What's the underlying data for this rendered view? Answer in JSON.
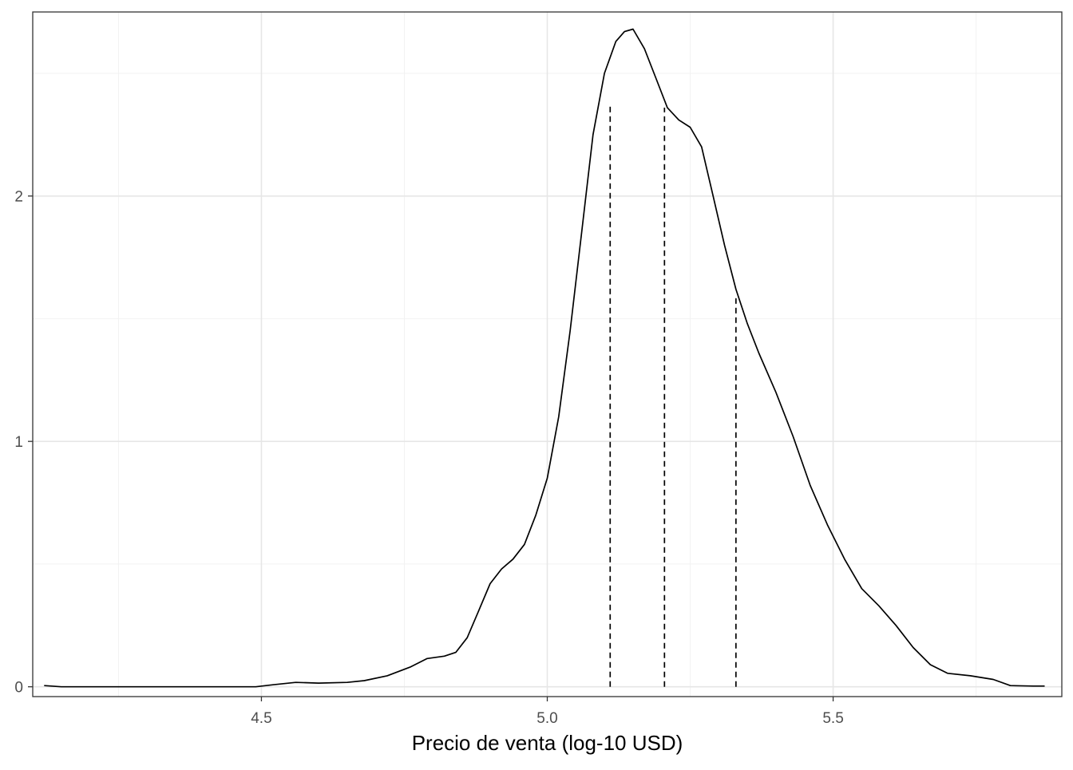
{
  "chart_data": {
    "type": "line",
    "title": "",
    "xlabel": "Precio de venta (log-10 USD)",
    "ylabel": "",
    "xlim": [
      4.1,
      5.9
    ],
    "ylim": [
      -0.04,
      2.75
    ],
    "x_ticks": [
      4.5,
      5.0,
      5.5
    ],
    "x_tick_labels": [
      "4.5",
      "5.0",
      "5.5"
    ],
    "x_minor_gridlines": [
      4.25,
      4.75,
      5.25,
      5.75
    ],
    "y_ticks": [
      0,
      1,
      2
    ],
    "y_tick_labels": [
      "0",
      "1",
      "2"
    ],
    "y_minor_gridlines": [
      0.5,
      1.5,
      2.5
    ],
    "grid": true,
    "series": [
      {
        "style": "solid",
        "color": "#000000",
        "points": [
          [
            4.12,
            0.005
          ],
          [
            4.15,
            0.0
          ],
          [
            4.2,
            0.0
          ],
          [
            4.3,
            0.0
          ],
          [
            4.4,
            0.0
          ],
          [
            4.49,
            0.0
          ],
          [
            4.52,
            0.008
          ],
          [
            4.56,
            0.018
          ],
          [
            4.6,
            0.015
          ],
          [
            4.65,
            0.018
          ],
          [
            4.68,
            0.025
          ],
          [
            4.72,
            0.045
          ],
          [
            4.76,
            0.08
          ],
          [
            4.79,
            0.115
          ],
          [
            4.82,
            0.125
          ],
          [
            4.84,
            0.14
          ],
          [
            4.86,
            0.2
          ],
          [
            4.88,
            0.31
          ],
          [
            4.9,
            0.42
          ],
          [
            4.92,
            0.48
          ],
          [
            4.94,
            0.52
          ],
          [
            4.96,
            0.58
          ],
          [
            4.98,
            0.7
          ],
          [
            5.0,
            0.85
          ],
          [
            5.02,
            1.1
          ],
          [
            5.04,
            1.45
          ],
          [
            5.06,
            1.85
          ],
          [
            5.08,
            2.25
          ],
          [
            5.1,
            2.5
          ],
          [
            5.12,
            2.63
          ],
          [
            5.135,
            2.67
          ],
          [
            5.15,
            2.68
          ],
          [
            5.17,
            2.6
          ],
          [
            5.19,
            2.48
          ],
          [
            5.21,
            2.36
          ],
          [
            5.23,
            2.31
          ],
          [
            5.25,
            2.28
          ],
          [
            5.27,
            2.2
          ],
          [
            5.29,
            2.0
          ],
          [
            5.31,
            1.8
          ],
          [
            5.33,
            1.62
          ],
          [
            5.35,
            1.48
          ],
          [
            5.37,
            1.36
          ],
          [
            5.4,
            1.2
          ],
          [
            5.43,
            1.02
          ],
          [
            5.46,
            0.82
          ],
          [
            5.49,
            0.66
          ],
          [
            5.52,
            0.52
          ],
          [
            5.55,
            0.4
          ],
          [
            5.58,
            0.33
          ],
          [
            5.61,
            0.25
          ],
          [
            5.64,
            0.16
          ],
          [
            5.67,
            0.09
          ],
          [
            5.7,
            0.055
          ],
          [
            5.74,
            0.045
          ],
          [
            5.78,
            0.03
          ],
          [
            5.81,
            0.005
          ],
          [
            5.85,
            0.003
          ],
          [
            5.87,
            0.003
          ]
        ]
      }
    ],
    "vlines": [
      {
        "x": 5.11,
        "y": 2.38,
        "style": "dashed"
      },
      {
        "x": 5.205,
        "y": 2.36,
        "style": "dashed"
      },
      {
        "x": 5.33,
        "y": 1.59,
        "style": "dashed"
      }
    ]
  }
}
